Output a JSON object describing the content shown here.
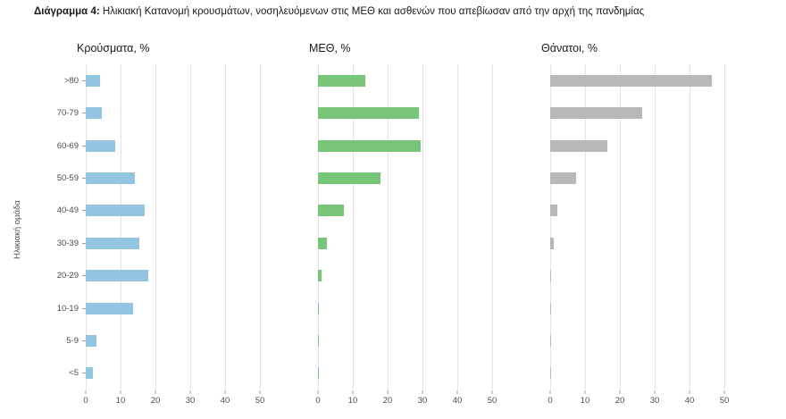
{
  "title": {
    "prefix": "Διάγραμμα 4:",
    "text": " Ηλικιακή Κατανομή κρουσμάτων, νοσηλευόμενων στις ΜΕΘ και ασθενών που απεβίωσαν από την αρχή της πανδημίας"
  },
  "ylabel": "Ηλικιακή ομάδα",
  "chart_data": {
    "type": "bar",
    "orientation": "horizontal",
    "grid": true,
    "legend": "none",
    "categories": [
      ">80",
      "70-79",
      "60-69",
      "50-59",
      "40-49",
      "30-39",
      "20-29",
      "10-19",
      "5-9",
      "<5"
    ],
    "xlim": [
      0,
      50
    ],
    "xticks": [
      0,
      10,
      20,
      30,
      40,
      50
    ],
    "ylabel": "Ηλικιακή ομάδα",
    "panels": [
      {
        "title": "Κρούσματα, %",
        "color": "#92c5e0",
        "values": [
          4,
          4.5,
          8.5,
          14,
          17,
          15.5,
          18,
          13.5,
          3,
          2
        ]
      },
      {
        "title": "ΜΕΘ, %",
        "color": "#77c579",
        "values": [
          13.5,
          29,
          29.5,
          18,
          7.5,
          2.5,
          1,
          0.3,
          0.2,
          0.2
        ]
      },
      {
        "title": "Θάνατοι, %",
        "color": "#b8b8b8",
        "values": [
          46.5,
          26.5,
          16.5,
          7.5,
          2,
          1,
          0.3,
          0.1,
          0.1,
          0.3
        ]
      }
    ]
  }
}
